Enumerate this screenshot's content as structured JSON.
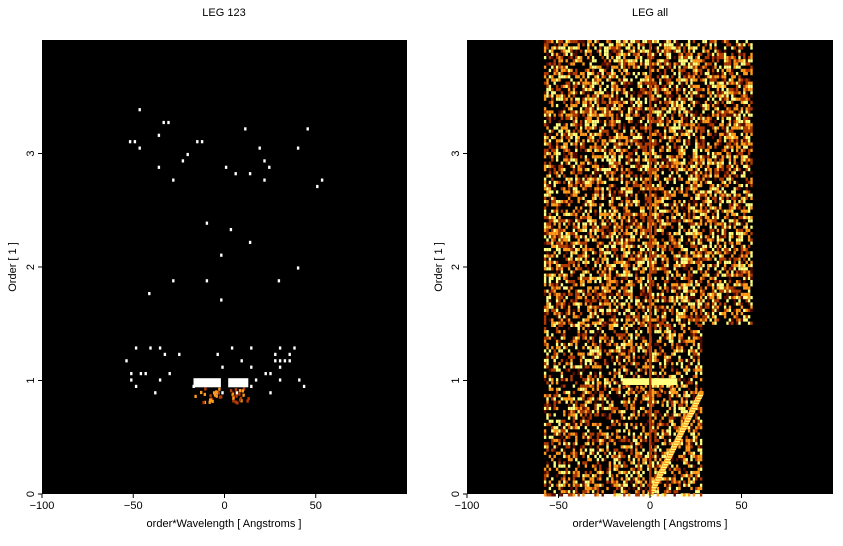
{
  "chart_data": [
    {
      "type": "heatmap",
      "title": "LEG 123",
      "xlabel": "order*Wavelength [ Angstroms ]",
      "ylabel": "Order [ 1 ]",
      "xlim": [
        -100,
        100
      ],
      "ylim": [
        0,
        4
      ],
      "xticks": [
        -100,
        -50,
        0,
        50
      ],
      "yticks": [
        0,
        1,
        2,
        3
      ],
      "colormap": [
        "#000000",
        "#5a0c00",
        "#b33a00",
        "#ff9a1a",
        "#ffffff"
      ],
      "background": "#000000",
      "grid": false,
      "features": [
        {
          "kind": "speckle",
          "x": [
            -57,
            57
          ],
          "y": [
            0.85,
            1.3
          ],
          "density": 0.35
        },
        {
          "kind": "hotspot",
          "x": [
            -17,
            -2
          ],
          "y": [
            0.94,
            1.02
          ],
          "intensity": 1.0
        },
        {
          "kind": "hotspot",
          "x": [
            2,
            13
          ],
          "y": [
            0.94,
            1.02
          ],
          "intensity": 1.0
        },
        {
          "kind": "speckle",
          "x": [
            -55,
            55
          ],
          "y": [
            1.7,
            2.4
          ],
          "density": 0.12
        },
        {
          "kind": "speckle",
          "x": [
            -55,
            55
          ],
          "y": [
            2.7,
            3.4
          ],
          "density": 0.12
        }
      ]
    },
    {
      "type": "heatmap",
      "title": "LEG all",
      "xlabel": "order*Wavelength [ Angstroms ]",
      "ylabel": "Order [ 1 ]",
      "xlim": [
        -100,
        100
      ],
      "ylim": [
        0,
        4
      ],
      "xticks": [
        -100,
        -50,
        0,
        50
      ],
      "yticks": [
        0,
        1,
        2,
        3
      ],
      "colormap": [
        "#000000",
        "#5a0c00",
        "#b33a00",
        "#ff9a1a",
        "#ffff80"
      ],
      "background": "#000000",
      "grid": false,
      "features": [
        {
          "kind": "dense-noise",
          "x": [
            -58,
            55
          ],
          "y": [
            1.5,
            4.0
          ],
          "density": 0.6
        },
        {
          "kind": "dense-noise",
          "x": [
            -58,
            28
          ],
          "y": [
            0.0,
            1.5
          ],
          "density": 0.5
        },
        {
          "kind": "streak",
          "x0": 0,
          "y0": 0.0,
          "x1": 28,
          "y1": 0.9
        },
        {
          "kind": "hotspot",
          "x": [
            -15,
            15
          ],
          "y": [
            0.96,
            1.02
          ],
          "intensity": 1.0
        },
        {
          "kind": "vertical-line",
          "x": 0,
          "y": [
            0.0,
            4.0
          ]
        }
      ]
    }
  ]
}
